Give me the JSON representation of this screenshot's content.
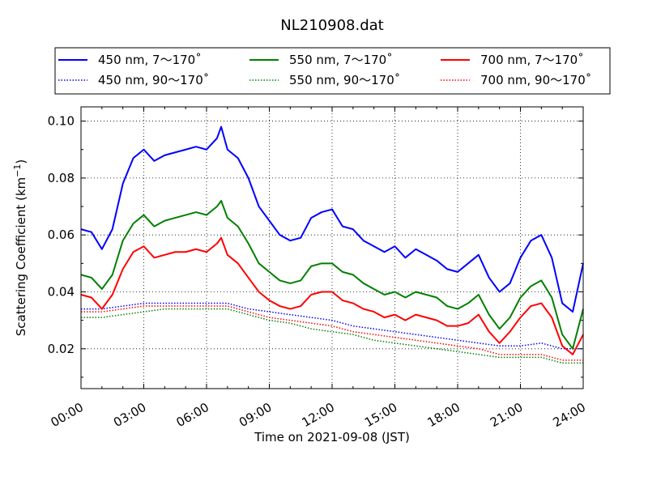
{
  "chart_data": {
    "type": "line",
    "title": "NL210908.dat",
    "xlabel": "Time on 2021-09-08 (JST)",
    "ylabel_main": "Scattering Coefficient (km",
    "ylabel_exp": "−1",
    "ylabel_close": ")",
    "xlim": [
      0,
      24
    ],
    "ylim": [
      0.006,
      0.105
    ],
    "x_ticks": [
      0,
      3,
      6,
      9,
      12,
      15,
      18,
      21,
      24
    ],
    "x_tick_labels": [
      "00:00",
      "03:00",
      "06:00",
      "09:00",
      "12:00",
      "15:00",
      "18:00",
      "21:00",
      "24:00"
    ],
    "y_ticks": [
      0.02,
      0.04,
      0.06,
      0.08,
      0.1
    ],
    "y_tick_labels": [
      "0.02",
      "0.04",
      "0.06",
      "0.08",
      "0.10"
    ],
    "grid": true,
    "legend_position": "top",
    "series": [
      {
        "name": "450 nm, 7～170˚",
        "color": "#0000ff",
        "style": "solid",
        "x": [
          0,
          0.5,
          1,
          1.5,
          2,
          2.5,
          3,
          3.5,
          4,
          4.5,
          5,
          5.5,
          6,
          6.5,
          6.7,
          7,
          7.5,
          8,
          8.5,
          9,
          9.5,
          10,
          10.5,
          11,
          11.5,
          12,
          12.5,
          13,
          13.5,
          14,
          14.5,
          15,
          15.5,
          16,
          16.5,
          17,
          17.5,
          18,
          18.5,
          19,
          19.5,
          20,
          20.5,
          21,
          21.5,
          22,
          22.5,
          23,
          23.5,
          24
        ],
        "y": [
          0.062,
          0.061,
          0.055,
          0.062,
          0.078,
          0.087,
          0.09,
          0.086,
          0.088,
          0.089,
          0.09,
          0.091,
          0.09,
          0.094,
          0.098,
          0.09,
          0.087,
          0.08,
          0.07,
          0.065,
          0.06,
          0.058,
          0.059,
          0.066,
          0.068,
          0.069,
          0.063,
          0.062,
          0.058,
          0.056,
          0.054,
          0.056,
          0.052,
          0.055,
          0.053,
          0.051,
          0.048,
          0.047,
          0.05,
          0.053,
          0.045,
          0.04,
          0.043,
          0.052,
          0.058,
          0.06,
          0.052,
          0.036,
          0.033,
          0.05
        ]
      },
      {
        "name": "450 nm, 90～170˚",
        "color": "#0000ff",
        "style": "dotted",
        "x": [
          0,
          1,
          2,
          3,
          4,
          5,
          6,
          7,
          8,
          9,
          10,
          11,
          12,
          13,
          14,
          15,
          16,
          17,
          18,
          19,
          20,
          21,
          22,
          23,
          24
        ],
        "y": [
          0.034,
          0.034,
          0.035,
          0.036,
          0.036,
          0.036,
          0.036,
          0.036,
          0.034,
          0.033,
          0.032,
          0.031,
          0.03,
          0.028,
          0.027,
          0.026,
          0.025,
          0.024,
          0.023,
          0.022,
          0.021,
          0.021,
          0.022,
          0.02,
          0.02
        ]
      },
      {
        "name": "550 nm, 7～170˚",
        "color": "#008000",
        "style": "solid",
        "x": [
          0,
          0.5,
          1,
          1.5,
          2,
          2.5,
          3,
          3.5,
          4,
          4.5,
          5,
          5.5,
          6,
          6.5,
          6.7,
          7,
          7.5,
          8,
          8.5,
          9,
          9.5,
          10,
          10.5,
          11,
          11.5,
          12,
          12.5,
          13,
          13.5,
          14,
          14.5,
          15,
          15.5,
          16,
          16.5,
          17,
          17.5,
          18,
          18.5,
          19,
          19.5,
          20,
          20.5,
          21,
          21.5,
          22,
          22.5,
          23,
          23.5,
          24
        ],
        "y": [
          0.046,
          0.045,
          0.041,
          0.046,
          0.058,
          0.064,
          0.067,
          0.063,
          0.065,
          0.066,
          0.067,
          0.068,
          0.067,
          0.07,
          0.072,
          0.066,
          0.063,
          0.057,
          0.05,
          0.047,
          0.044,
          0.043,
          0.044,
          0.049,
          0.05,
          0.05,
          0.047,
          0.046,
          0.043,
          0.041,
          0.039,
          0.04,
          0.038,
          0.04,
          0.039,
          0.038,
          0.035,
          0.034,
          0.036,
          0.039,
          0.032,
          0.027,
          0.031,
          0.038,
          0.042,
          0.044,
          0.038,
          0.025,
          0.02,
          0.034
        ]
      },
      {
        "name": "550 nm, 90～170˚",
        "color": "#008000",
        "style": "dotted",
        "x": [
          0,
          1,
          2,
          3,
          4,
          5,
          6,
          7,
          8,
          9,
          10,
          11,
          12,
          13,
          14,
          15,
          16,
          17,
          18,
          19,
          20,
          21,
          22,
          23,
          24
        ],
        "y": [
          0.031,
          0.031,
          0.032,
          0.033,
          0.034,
          0.034,
          0.034,
          0.034,
          0.032,
          0.03,
          0.029,
          0.027,
          0.026,
          0.025,
          0.023,
          0.022,
          0.021,
          0.02,
          0.019,
          0.018,
          0.017,
          0.017,
          0.017,
          0.015,
          0.015
        ]
      },
      {
        "name": "700 nm, 7～170˚",
        "color": "#ff0000",
        "style": "solid",
        "x": [
          0,
          0.5,
          1,
          1.5,
          2,
          2.5,
          3,
          3.5,
          4,
          4.5,
          5,
          5.5,
          6,
          6.5,
          6.7,
          7,
          7.5,
          8,
          8.5,
          9,
          9.5,
          10,
          10.5,
          11,
          11.5,
          12,
          12.5,
          13,
          13.5,
          14,
          14.5,
          15,
          15.5,
          16,
          16.5,
          17,
          17.5,
          18,
          18.5,
          19,
          19.5,
          20,
          20.5,
          21,
          21.5,
          22,
          22.5,
          23,
          23.5,
          24
        ],
        "y": [
          0.039,
          0.038,
          0.034,
          0.039,
          0.048,
          0.054,
          0.056,
          0.052,
          0.053,
          0.054,
          0.054,
          0.055,
          0.054,
          0.057,
          0.059,
          0.053,
          0.05,
          0.045,
          0.04,
          0.037,
          0.035,
          0.034,
          0.035,
          0.039,
          0.04,
          0.04,
          0.037,
          0.036,
          0.034,
          0.033,
          0.031,
          0.032,
          0.03,
          0.032,
          0.031,
          0.03,
          0.028,
          0.028,
          0.029,
          0.032,
          0.026,
          0.022,
          0.026,
          0.031,
          0.035,
          0.036,
          0.031,
          0.021,
          0.018,
          0.025
        ]
      },
      {
        "name": "700 nm, 90～170˚",
        "color": "#ff0000",
        "style": "dotted",
        "x": [
          0,
          1,
          2,
          3,
          4,
          5,
          6,
          7,
          8,
          9,
          10,
          11,
          12,
          13,
          14,
          15,
          16,
          17,
          18,
          19,
          20,
          21,
          22,
          23,
          24
        ],
        "y": [
          0.033,
          0.033,
          0.034,
          0.035,
          0.035,
          0.035,
          0.035,
          0.035,
          0.033,
          0.031,
          0.03,
          0.029,
          0.028,
          0.026,
          0.025,
          0.024,
          0.023,
          0.022,
          0.021,
          0.02,
          0.018,
          0.018,
          0.018,
          0.016,
          0.016
        ]
      }
    ]
  }
}
